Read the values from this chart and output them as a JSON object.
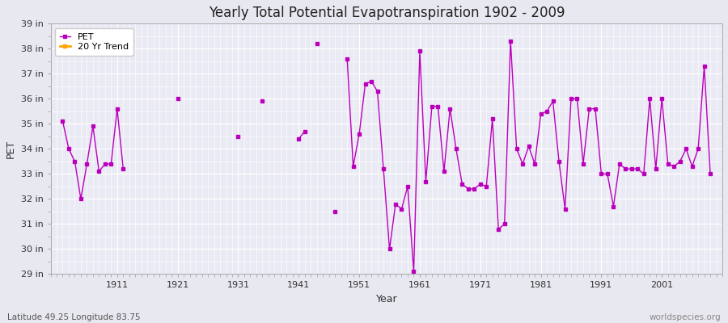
{
  "title": "Yearly Total Potential Evapotranspiration 1902 - 2009",
  "xlabel": "Year",
  "ylabel": "PET",
  "lat_lon_label": "Latitude 49.25 Longitude 83.75",
  "watermark": "worldspecies.org",
  "ylim": [
    29,
    39
  ],
  "ytick_labels": [
    "29 in",
    "30 in",
    "31 in",
    "32 in",
    "33 in",
    "34 in",
    "35 in",
    "36 in",
    "37 in",
    "38 in",
    "39 in"
  ],
  "ytick_values": [
    29,
    30,
    31,
    32,
    33,
    34,
    35,
    36,
    37,
    38,
    39
  ],
  "xtick_values": [
    1911,
    1921,
    1931,
    1941,
    1951,
    1961,
    1971,
    1981,
    1991,
    2001
  ],
  "bg_color": "#e8e8f0",
  "plot_bg_color": "#eaeaf4",
  "grid_color": "#ffffff",
  "line_color": "#bb00bb",
  "trend_color": "#ffa500",
  "legend_entries": [
    "PET",
    "20 Yr Trend"
  ],
  "years": [
    1902,
    1903,
    1904,
    1905,
    1906,
    1907,
    1908,
    1909,
    1910,
    1911,
    1912,
    1913,
    1914,
    1915,
    1916,
    1917,
    1918,
    1919,
    1920,
    1921,
    1922,
    1923,
    1924,
    1925,
    1926,
    1927,
    1928,
    1929,
    1930,
    1931,
    1932,
    1933,
    1934,
    1935,
    1936,
    1937,
    1938,
    1939,
    1940,
    1941,
    1942,
    1943,
    1944,
    1945,
    1946,
    1947,
    1948,
    1949,
    1950,
    1951,
    1952,
    1953,
    1954,
    1955,
    1956,
    1957,
    1958,
    1959,
    1960,
    1961,
    1962,
    1963,
    1964,
    1965,
    1966,
    1967,
    1968,
    1969,
    1970,
    1971,
    1972,
    1973,
    1974,
    1975,
    1976,
    1977,
    1978,
    1979,
    1980,
    1981,
    1982,
    1983,
    1984,
    1985,
    1986,
    1987,
    1988,
    1989,
    1990,
    1991,
    1992,
    1993,
    1994,
    1995,
    1996,
    1997,
    1998,
    1999,
    2000,
    2001,
    2002,
    2003,
    2004,
    2005,
    2006,
    2007,
    2008,
    2009
  ],
  "pet_values": [
    35.1,
    34.0,
    33.5,
    32.0,
    33.4,
    34.9,
    33.1,
    33.4,
    33.4,
    35.6,
    33.2,
    null,
    null,
    null,
    null,
    null,
    null,
    null,
    null,
    36.0,
    null,
    null,
    null,
    null,
    null,
    null,
    null,
    null,
    null,
    34.5,
    null,
    null,
    null,
    35.9,
    null,
    null,
    null,
    null,
    null,
    34.4,
    34.7,
    null,
    38.2,
    null,
    null,
    31.5,
    null,
    37.6,
    33.3,
    34.6,
    36.6,
    36.7,
    36.3,
    33.2,
    30.0,
    31.8,
    31.6,
    32.5,
    29.1,
    37.9,
    32.7,
    35.7,
    35.7,
    33.1,
    35.6,
    34.0,
    32.6,
    32.4,
    32.4,
    32.6,
    32.5,
    35.2,
    30.8,
    31.0,
    38.3,
    34.0,
    33.4,
    34.1,
    33.4,
    35.4,
    35.5,
    35.9,
    33.5,
    31.6,
    36.0,
    36.0,
    33.4,
    35.6,
    35.6,
    33.0,
    33.0,
    31.7,
    33.4,
    33.2,
    33.2,
    33.2,
    33.0,
    36.0,
    33.2,
    36.0,
    33.4,
    33.3,
    33.5,
    34.0,
    33.3,
    34.0,
    37.3,
    33.0
  ]
}
